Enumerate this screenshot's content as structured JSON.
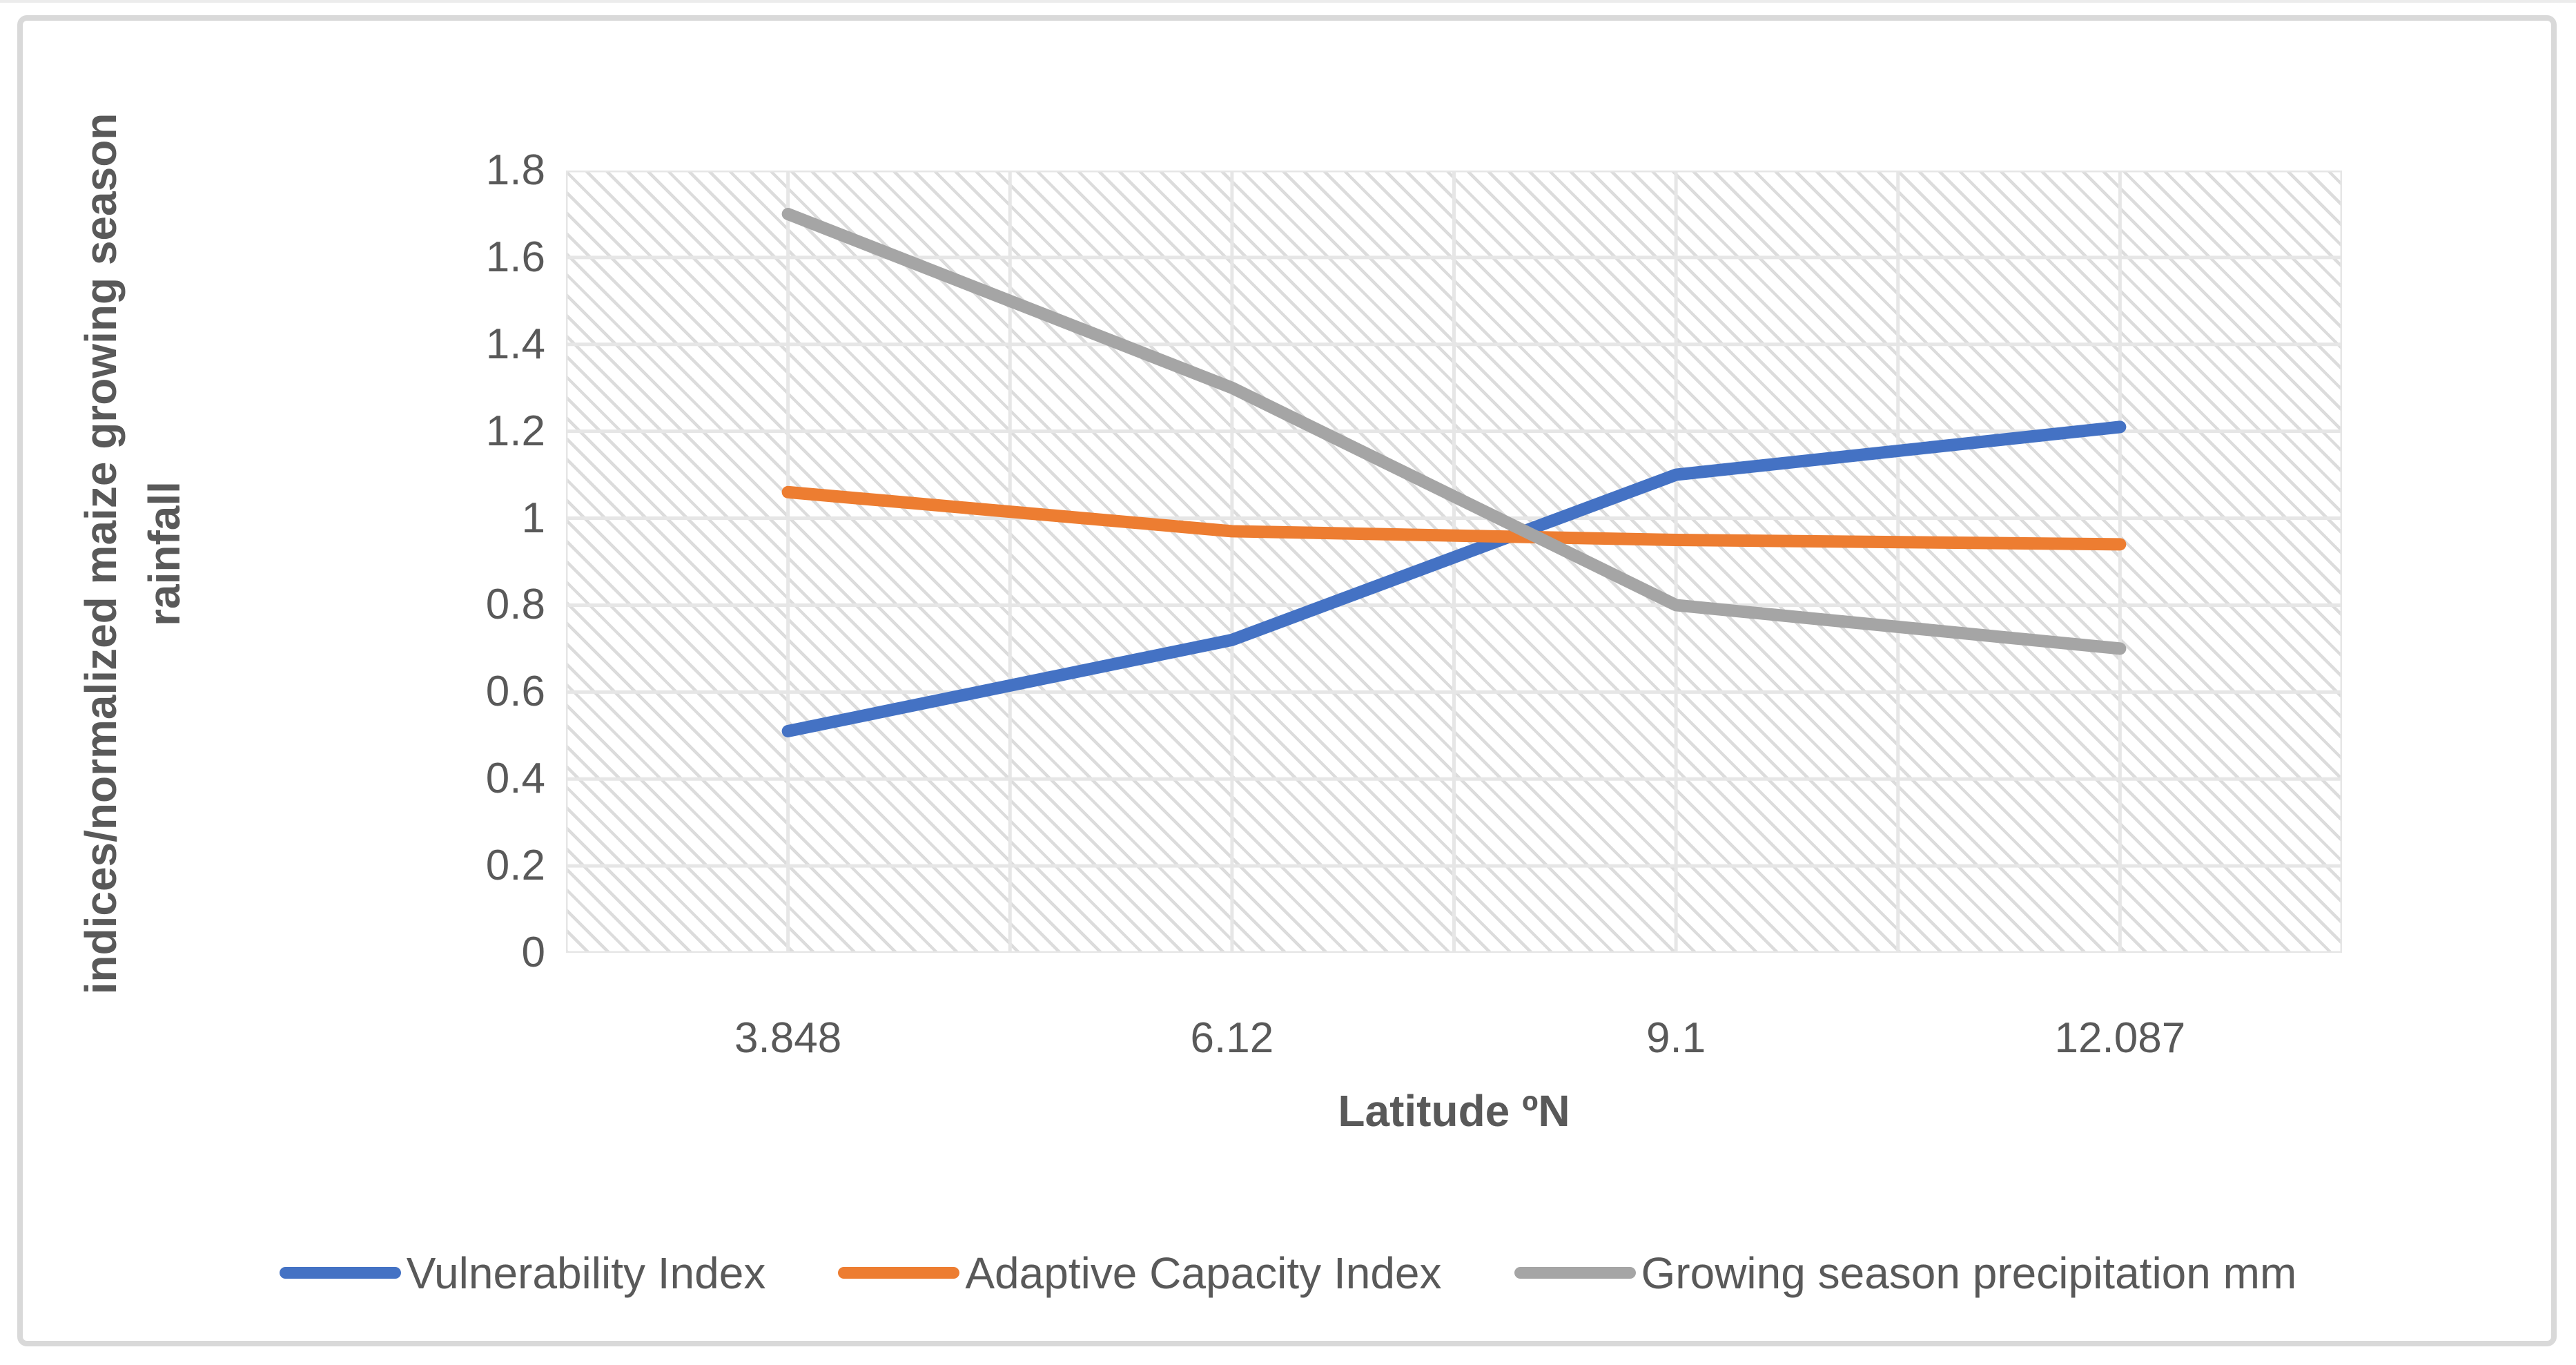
{
  "figure": {
    "border_color": "#d9d9d9",
    "background_color": "#ffffff",
    "text_color": "#595959",
    "gridline_color": "#e6e6e6",
    "plot_pattern": "light-downward-diagonal-hatch"
  },
  "chart_data": {
    "type": "line",
    "title": "",
    "x": [
      3.848,
      6.12,
      9.1,
      12.087
    ],
    "x_tick_labels": [
      "3.848",
      "6.12",
      "9.1",
      "12.087"
    ],
    "xlabel": "Latitude ºN",
    "ylabel": "indices/normalized maize growing season rainfall",
    "ylim": [
      0,
      1.8
    ],
    "y_tick_step": 0.2,
    "y_tick_labels_top_down": [
      "1.8",
      "1.6",
      "1.4",
      "1.2",
      "1",
      "0.8",
      "0.6",
      "0.4",
      "0.2",
      "0"
    ],
    "grid": true,
    "vertical_gridlines_per_category": 2,
    "legend_position": "bottom",
    "series": [
      {
        "name": "Vulnerability Index",
        "color": "#4472C4",
        "values": [
          0.51,
          0.72,
          1.1,
          1.21
        ]
      },
      {
        "name": "Adaptive Capacity Index",
        "color": "#ED7D31",
        "values": [
          1.06,
          0.97,
          0.95,
          0.94
        ]
      },
      {
        "name": "Growing season precipitation mm",
        "color": "#A5A5A5",
        "values": [
          1.7,
          1.3,
          0.8,
          0.7
        ]
      }
    ]
  }
}
